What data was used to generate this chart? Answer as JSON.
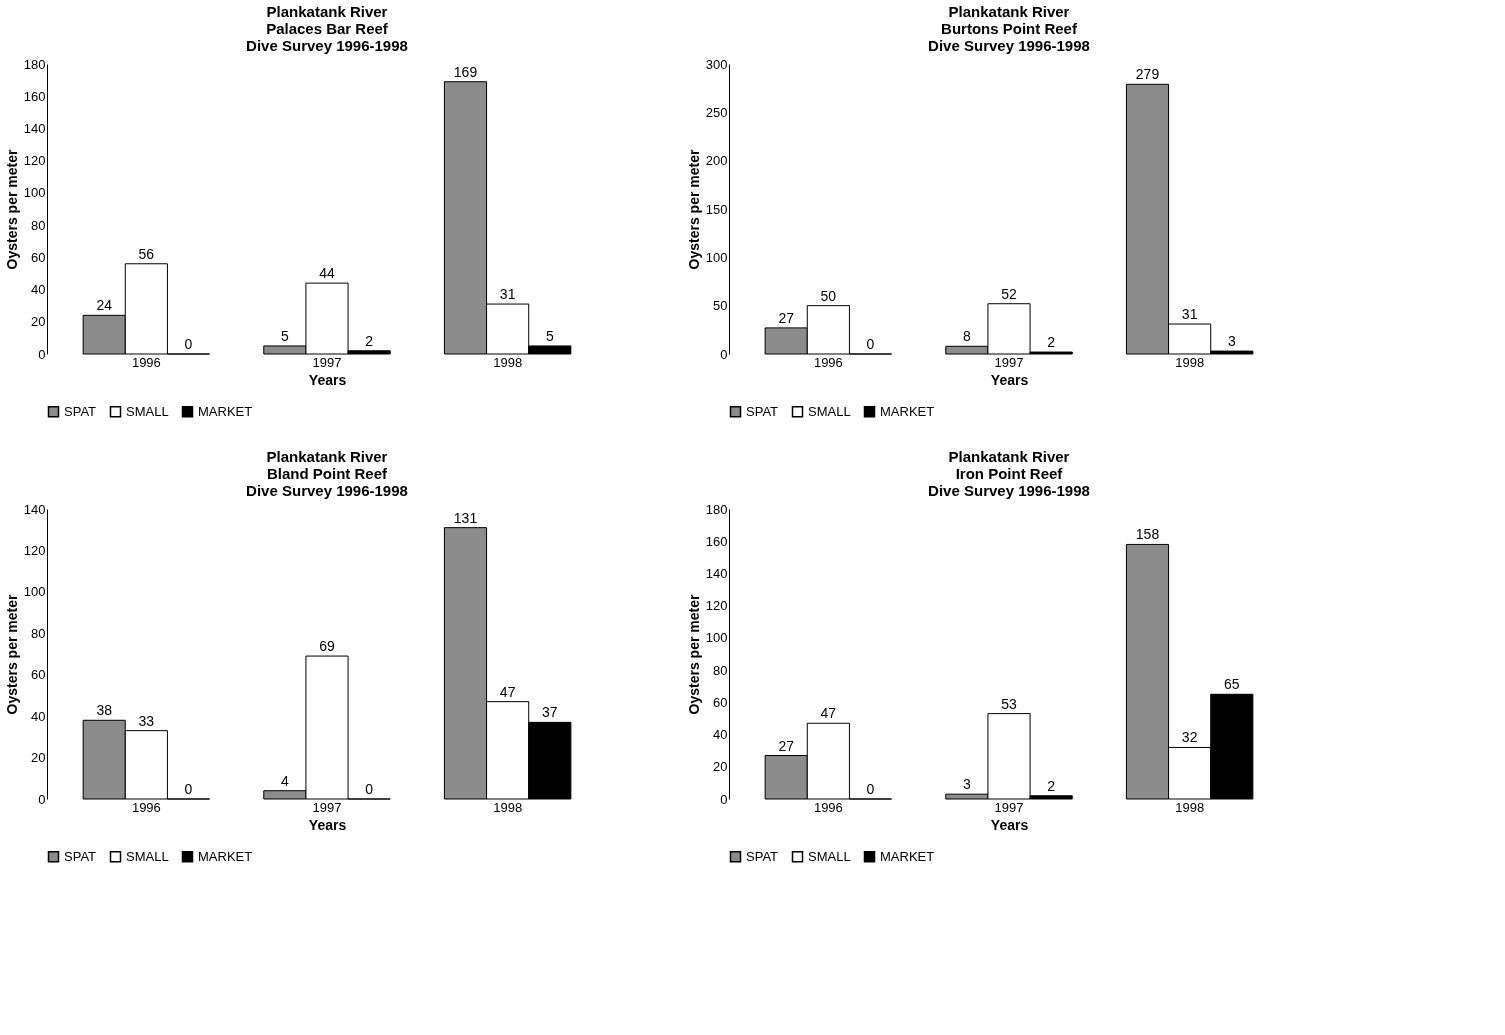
{
  "chart_data": [
    {
      "type": "bar",
      "title": "Plankatank River\nPalaces Bar Reef\nDive Survey 1996-1998",
      "xlabel": "Years",
      "ylabel": "Oysters per meter",
      "categories": [
        "1996",
        "1997",
        "1998"
      ],
      "series": [
        {
          "name": "SPAT",
          "color": "#8c8c8c",
          "values": [
            24,
            5,
            169
          ]
        },
        {
          "name": "SMALL",
          "color": "#ffffff",
          "values": [
            56,
            44,
            31
          ]
        },
        {
          "name": "MARKET",
          "color": "#000000",
          "values": [
            0,
            2,
            5
          ]
        }
      ],
      "ylim": [
        0,
        180
      ],
      "yticks": [
        0,
        20,
        40,
        60,
        80,
        100,
        120,
        140,
        160,
        180
      ],
      "data_labels": true,
      "legend": "bottom",
      "grid": false
    },
    {
      "type": "bar",
      "title": "Plankatank River\nBurtons Point Reef\nDive Survey 1996-1998",
      "xlabel": "Years",
      "ylabel": "Oysters per meter",
      "categories": [
        "1996",
        "1997",
        "1998"
      ],
      "series": [
        {
          "name": "SPAT",
          "color": "#8c8c8c",
          "values": [
            27,
            8,
            279
          ]
        },
        {
          "name": "SMALL",
          "color": "#ffffff",
          "values": [
            50,
            52,
            31
          ]
        },
        {
          "name": "MARKET",
          "color": "#000000",
          "values": [
            0,
            2,
            3
          ]
        }
      ],
      "ylim": [
        0,
        300
      ],
      "yticks": [
        0,
        50,
        100,
        150,
        200,
        250,
        300
      ],
      "data_labels": true,
      "legend": "bottom",
      "grid": false
    },
    {
      "type": "bar",
      "title": "Plankatank River\nBland Point Reef\nDive Survey 1996-1998",
      "xlabel": "Years",
      "ylabel": "Oysters per meter",
      "categories": [
        "1996",
        "1997",
        "1998"
      ],
      "series": [
        {
          "name": "SPAT",
          "color": "#8c8c8c",
          "values": [
            38,
            4,
            131
          ]
        },
        {
          "name": "SMALL",
          "color": "#ffffff",
          "values": [
            33,
            69,
            47
          ]
        },
        {
          "name": "MARKET",
          "color": "#000000",
          "values": [
            0,
            0,
            37
          ]
        }
      ],
      "ylim": [
        0,
        140
      ],
      "yticks": [
        0,
        20,
        40,
        60,
        80,
        100,
        120,
        140
      ],
      "data_labels": true,
      "legend": "bottom",
      "grid": false
    },
    {
      "type": "bar",
      "title": "Plankatank River\nIron Point Reef\nDive Survey 1996-1998",
      "xlabel": "Years",
      "ylabel": "Oysters per meter",
      "categories": [
        "1996",
        "1997",
        "1998"
      ],
      "series": [
        {
          "name": "SPAT",
          "color": "#8c8c8c",
          "values": [
            27,
            3,
            158
          ]
        },
        {
          "name": "SMALL",
          "color": "#ffffff",
          "values": [
            47,
            53,
            32
          ]
        },
        {
          "name": "MARKET",
          "color": "#000000",
          "values": [
            0,
            2,
            65
          ]
        }
      ],
      "ylim": [
        0,
        180
      ],
      "yticks": [
        0,
        20,
        40,
        60,
        80,
        100,
        120,
        140,
        160,
        180
      ],
      "data_labels": true,
      "legend": "bottom",
      "grid": false
    }
  ]
}
